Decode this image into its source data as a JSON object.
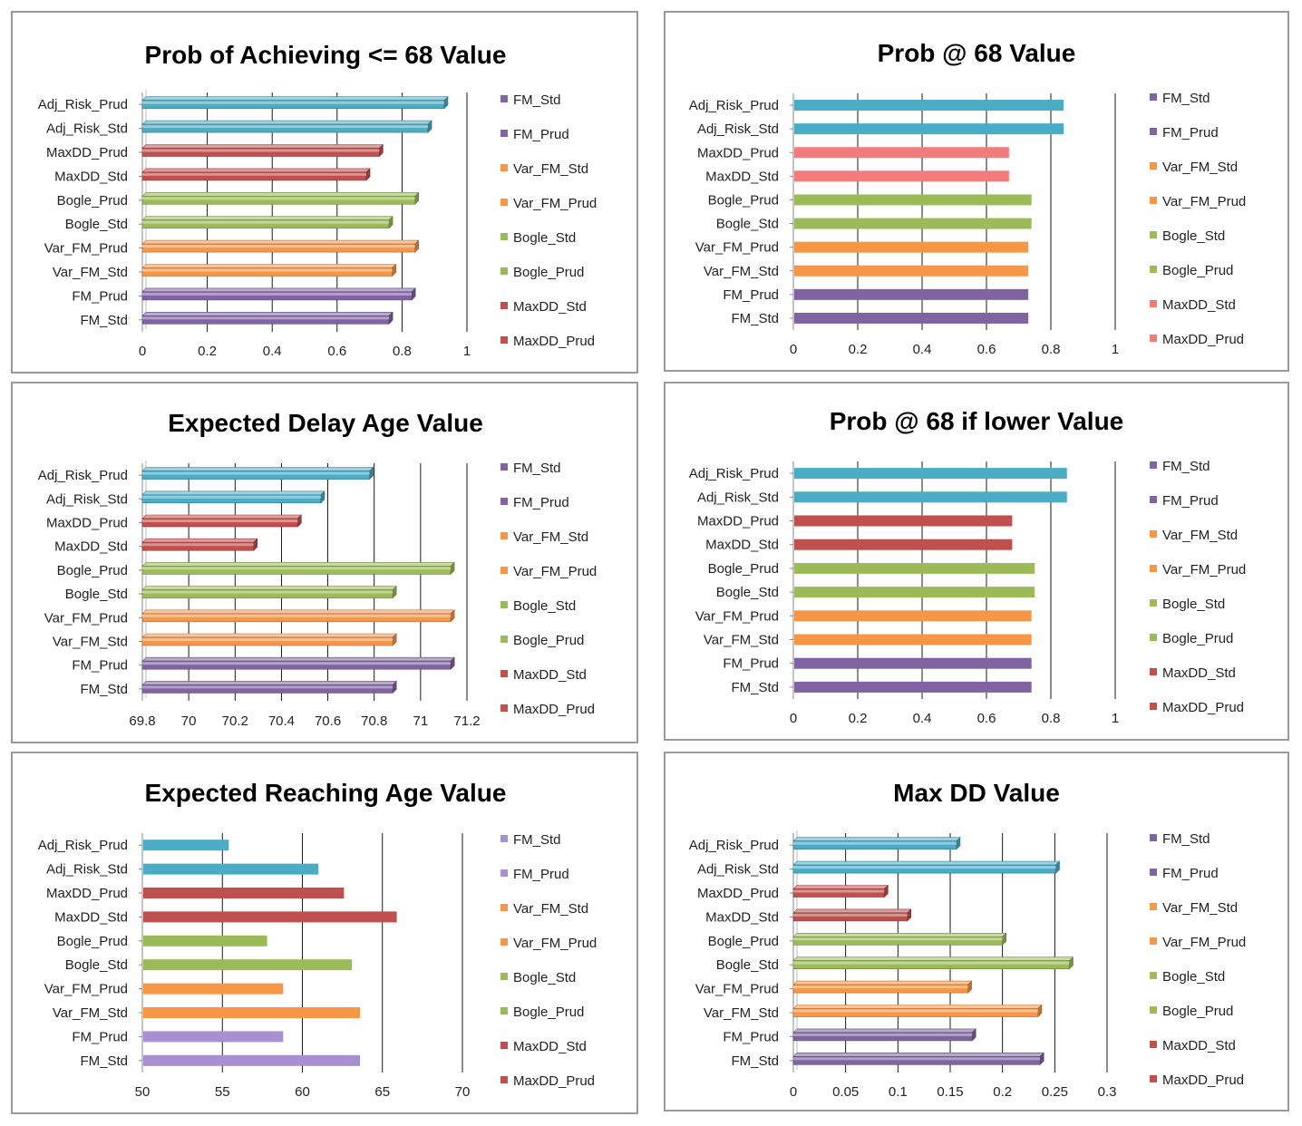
{
  "chart_data": [
    {
      "type": "bar",
      "orientation": "horizontal",
      "style": "3d",
      "title": "Prob of Achieving <= 68 Value",
      "categories": [
        "FM_Std",
        "FM_Prud",
        "Var_FM_Std",
        "Var_FM_Prud",
        "Bogle_Std",
        "Bogle_Prud",
        "MaxDD_Std",
        "MaxDD_Prud",
        "Adj_Risk_Std",
        "Adj_Risk_Prud"
      ],
      "values": [
        0.76,
        0.83,
        0.77,
        0.84,
        0.76,
        0.84,
        0.69,
        0.73,
        0.88,
        0.93
      ],
      "bar_colors": [
        "#8064a2",
        "#8064a2",
        "#f79646",
        "#f79646",
        "#9bbb59",
        "#9bbb59",
        "#c0504d",
        "#c0504d",
        "#4bacc6",
        "#4bacc6"
      ],
      "xlim": [
        0,
        1
      ],
      "xticks": [
        "0",
        "0.2",
        "0.4",
        "0.6",
        "0.8",
        "1"
      ],
      "grid": true,
      "legend": {
        "placement": "right",
        "items": [
          {
            "label": "FM_Std",
            "color": "#8064a2"
          },
          {
            "label": "FM_Prud",
            "color": "#8064a2"
          },
          {
            "label": "Var_FM_Std",
            "color": "#f79646"
          },
          {
            "label": "Var_FM_Prud",
            "color": "#f79646"
          },
          {
            "label": "Bogle_Std",
            "color": "#9bbb59"
          },
          {
            "label": "Bogle_Prud",
            "color": "#9bbb59"
          },
          {
            "label": "MaxDD_Std",
            "color": "#c0504d"
          },
          {
            "label": "MaxDD_Prud",
            "color": "#c0504d"
          }
        ]
      }
    },
    {
      "type": "bar",
      "orientation": "horizontal",
      "style": "flat",
      "title": "Prob @ 68 Value",
      "categories": [
        "FM_Std",
        "FM_Prud",
        "Var_FM_Std",
        "Var_FM_Prud",
        "Bogle_Std",
        "Bogle_Prud",
        "MaxDD_Std",
        "MaxDD_Prud",
        "Adj_Risk_Std",
        "Adj_Risk_Prud"
      ],
      "values": [
        0.73,
        0.73,
        0.73,
        0.73,
        0.74,
        0.74,
        0.67,
        0.67,
        0.84,
        0.84
      ],
      "bar_colors": [
        "#8064a2",
        "#8064a2",
        "#f79646",
        "#f79646",
        "#9bbb59",
        "#9bbb59",
        "#f27b7b",
        "#f27b7b",
        "#4bacc6",
        "#4bacc6"
      ],
      "xlim": [
        0,
        1
      ],
      "xticks": [
        "0",
        "0.2",
        "0.4",
        "0.6",
        "0.8",
        "1"
      ],
      "grid": true,
      "legend": {
        "placement": "right",
        "items": [
          {
            "label": "FM_Std",
            "color": "#8064a2"
          },
          {
            "label": "FM_Prud",
            "color": "#8064a2"
          },
          {
            "label": "Var_FM_Std",
            "color": "#f79646"
          },
          {
            "label": "Var_FM_Prud",
            "color": "#f79646"
          },
          {
            "label": "Bogle_Std",
            "color": "#9bbb59"
          },
          {
            "label": "Bogle_Prud",
            "color": "#9bbb59"
          },
          {
            "label": "MaxDD_Std",
            "color": "#f27b7b"
          },
          {
            "label": "MaxDD_Prud",
            "color": "#f27b7b"
          }
        ]
      }
    },
    {
      "type": "bar",
      "orientation": "horizontal",
      "style": "3d",
      "title": "Expected Delay Age Value",
      "categories": [
        "FM_Std",
        "FM_Prud",
        "Var_FM_Std",
        "Var_FM_Prud",
        "Bogle_Std",
        "Bogle_Prud",
        "MaxDD_Std",
        "MaxDD_Prud",
        "Adj_Risk_Std",
        "Adj_Risk_Prud"
      ],
      "values": [
        70.88,
        71.13,
        70.88,
        71.13,
        70.88,
        71.13,
        70.28,
        70.47,
        70.57,
        70.78
      ],
      "bar_colors": [
        "#8064a2",
        "#8064a2",
        "#f79646",
        "#f79646",
        "#9bbb59",
        "#9bbb59",
        "#c0504d",
        "#c0504d",
        "#4bacc6",
        "#4bacc6"
      ],
      "xlim": [
        69.8,
        71.2
      ],
      "xticks": [
        "69.8",
        "70",
        "70.2",
        "70.4",
        "70.6",
        "70.8",
        "71",
        "71.2"
      ],
      "grid": true,
      "legend": {
        "placement": "right",
        "items": [
          {
            "label": "FM_Std",
            "color": "#8064a2"
          },
          {
            "label": "FM_Prud",
            "color": "#8064a2"
          },
          {
            "label": "Var_FM_Std",
            "color": "#f79646"
          },
          {
            "label": "Var_FM_Prud",
            "color": "#f79646"
          },
          {
            "label": "Bogle_Std",
            "color": "#9bbb59"
          },
          {
            "label": "Bogle_Prud",
            "color": "#9bbb59"
          },
          {
            "label": "MaxDD_Std",
            "color": "#c0504d"
          },
          {
            "label": "MaxDD_Prud",
            "color": "#c0504d"
          }
        ]
      }
    },
    {
      "type": "bar",
      "orientation": "horizontal",
      "style": "flat",
      "title": "Prob @ 68 if lower Value",
      "categories": [
        "FM_Std",
        "FM_Prud",
        "Var_FM_Std",
        "Var_FM_Prud",
        "Bogle_Std",
        "Bogle_Prud",
        "MaxDD_Std",
        "MaxDD_Prud",
        "Adj_Risk_Std",
        "Adj_Risk_Prud"
      ],
      "values": [
        0.74,
        0.74,
        0.74,
        0.74,
        0.75,
        0.75,
        0.68,
        0.68,
        0.85,
        0.85
      ],
      "bar_colors": [
        "#8064a2",
        "#8064a2",
        "#f79646",
        "#f79646",
        "#9bbb59",
        "#9bbb59",
        "#c0504d",
        "#c0504d",
        "#4bacc6",
        "#4bacc6"
      ],
      "xlim": [
        0,
        1
      ],
      "xticks": [
        "0",
        "0.2",
        "0.4",
        "0.6",
        "0.8",
        "1"
      ],
      "grid": true,
      "legend": {
        "placement": "right",
        "items": [
          {
            "label": "FM_Std",
            "color": "#8064a2"
          },
          {
            "label": "FM_Prud",
            "color": "#8064a2"
          },
          {
            "label": "Var_FM_Std",
            "color": "#f79646"
          },
          {
            "label": "Var_FM_Prud",
            "color": "#f79646"
          },
          {
            "label": "Bogle_Std",
            "color": "#9bbb59"
          },
          {
            "label": "Bogle_Prud",
            "color": "#9bbb59"
          },
          {
            "label": "MaxDD_Std",
            "color": "#c0504d"
          },
          {
            "label": "MaxDD_Prud",
            "color": "#c0504d"
          }
        ]
      }
    },
    {
      "type": "bar",
      "orientation": "horizontal",
      "style": "flat",
      "title": "Expected Reaching Age Value",
      "categories": [
        "FM_Std",
        "FM_Prud",
        "Var_FM_Std",
        "Var_FM_Prud",
        "Bogle_Std",
        "Bogle_Prud",
        "MaxDD_Std",
        "MaxDD_Prud",
        "Adj_Risk_Std",
        "Adj_Risk_Prud"
      ],
      "values": [
        63.6,
        58.8,
        63.6,
        58.8,
        63.1,
        57.8,
        65.9,
        62.6,
        61.0,
        55.4
      ],
      "bar_colors": [
        "#a88fd0",
        "#a88fd0",
        "#f79646",
        "#f79646",
        "#9bbb59",
        "#9bbb59",
        "#c0504d",
        "#c0504d",
        "#4bacc6",
        "#4bacc6"
      ],
      "xlim": [
        50,
        70
      ],
      "xticks": [
        "50",
        "55",
        "60",
        "65",
        "70"
      ],
      "grid": true,
      "legend": {
        "placement": "right",
        "items": [
          {
            "label": "FM_Std",
            "color": "#a88fd0"
          },
          {
            "label": "FM_Prud",
            "color": "#a88fd0"
          },
          {
            "label": "Var_FM_Std",
            "color": "#f79646"
          },
          {
            "label": "Var_FM_Prud",
            "color": "#f79646"
          },
          {
            "label": "Bogle_Std",
            "color": "#9bbb59"
          },
          {
            "label": "Bogle_Prud",
            "color": "#9bbb59"
          },
          {
            "label": "MaxDD_Std",
            "color": "#c0504d"
          },
          {
            "label": "MaxDD_Prud",
            "color": "#c0504d"
          }
        ]
      }
    },
    {
      "type": "bar",
      "orientation": "horizontal",
      "style": "3d",
      "title": "Max DD Value",
      "categories": [
        "FM_Std",
        "FM_Prud",
        "Var_FM_Std",
        "Var_FM_Prud",
        "Bogle_Std",
        "Bogle_Prud",
        "MaxDD_Std",
        "MaxDD_Prud",
        "Adj_Risk_Std",
        "Adj_Risk_Prud"
      ],
      "values": [
        0.236,
        0.171,
        0.234,
        0.167,
        0.264,
        0.2,
        0.109,
        0.087,
        0.251,
        0.156
      ],
      "bar_colors": [
        "#8064a2",
        "#8064a2",
        "#f79646",
        "#f79646",
        "#9bbb59",
        "#9bbb59",
        "#c0504d",
        "#c0504d",
        "#4bacc6",
        "#4bacc6"
      ],
      "xlim": [
        0,
        0.3
      ],
      "xticks": [
        "0",
        "0.05",
        "0.1",
        "0.15",
        "0.2",
        "0.25",
        "0.3"
      ],
      "grid": true,
      "legend": {
        "placement": "right",
        "items": [
          {
            "label": "FM_Std",
            "color": "#8064a2"
          },
          {
            "label": "FM_Prud",
            "color": "#8064a2"
          },
          {
            "label": "Var_FM_Std",
            "color": "#f79646"
          },
          {
            "label": "Var_FM_Prud",
            "color": "#f79646"
          },
          {
            "label": "Bogle_Std",
            "color": "#9bbb59"
          },
          {
            "label": "Bogle_Prud",
            "color": "#9bbb59"
          },
          {
            "label": "MaxDD_Std",
            "color": "#c0504d"
          },
          {
            "label": "MaxDD_Prud",
            "color": "#c0504d"
          }
        ]
      }
    }
  ]
}
